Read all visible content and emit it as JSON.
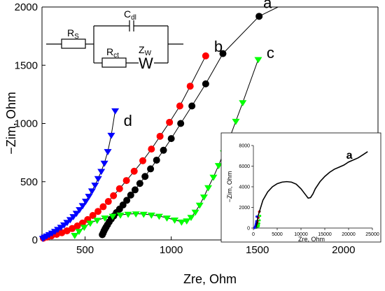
{
  "chart_data": {
    "type": "scatter",
    "xlabel": "Zre, Ohm",
    "ylabel": "−Zim, Ohm",
    "xlim": [
      250,
      2200
    ],
    "ylim": [
      0,
      2000
    ],
    "xticks": [
      "500",
      "1000",
      "1500",
      "2000"
    ],
    "yticks": [
      "0",
      "500",
      "1000",
      "1500",
      "2000"
    ],
    "series": [
      {
        "name": "a",
        "color": "#000000",
        "marker": "circle",
        "x": [
          600,
          605,
          610,
          616,
          622,
          630,
          640,
          652,
          666,
          682,
          700,
          720,
          742,
          765,
          790,
          818,
          848,
          880,
          915,
          955,
          1000,
          1055,
          1120,
          1200,
          1300,
          1510
        ],
        "y": [
          45,
          60,
          78,
          95,
          110,
          130,
          155,
          180,
          205,
          235,
          265,
          300,
          340,
          385,
          430,
          485,
          545,
          610,
          685,
          770,
          870,
          1000,
          1150,
          1340,
          1600,
          1920
        ],
        "line_to": [
          1620,
          2000
        ]
      },
      {
        "name": "b",
        "color": "#ff0000",
        "marker": "circle",
        "x": [
          258,
          280,
          305,
          335,
          365,
          395,
          425,
          455,
          485,
          515,
          545,
          575,
          605,
          635,
          665,
          700,
          740,
          785,
          835,
          885,
          935,
          990,
          1050,
          1110,
          1200
        ],
        "y": [
          15,
          25,
          35,
          48,
          62,
          78,
          98,
          120,
          145,
          175,
          210,
          245,
          285,
          330,
          380,
          440,
          510,
          590,
          680,
          780,
          890,
          1010,
          1150,
          1320,
          1580
        ]
      },
      {
        "name": "c",
        "color": "#00ff00",
        "marker": "triangle-down",
        "x": [
          440,
          465,
          495,
          530,
          570,
          615,
          660,
          705,
          750,
          795,
          840,
          885,
          930,
          975,
          1020,
          1060,
          1090,
          1115,
          1140,
          1165,
          1190,
          1215,
          1245,
          1275,
          1305,
          1340,
          1375,
          1415,
          1505
        ],
        "y": [
          40,
          75,
          110,
          145,
          170,
          190,
          205,
          215,
          222,
          225,
          222,
          215,
          205,
          190,
          172,
          155,
          165,
          195,
          240,
          300,
          370,
          450,
          540,
          640,
          750,
          880,
          1020,
          1180,
          1550
        ]
      },
      {
        "name": "d",
        "color": "#0000ff",
        "marker": "triangle-down",
        "x": [
          255,
          265,
          278,
          292,
          308,
          325,
          342,
          360,
          378,
          396,
          414,
          432,
          450,
          468,
          486,
          504,
          522,
          540,
          558,
          576,
          594,
          612,
          632,
          652,
          675
        ],
        "y": [
          15,
          25,
          35,
          47,
          60,
          75,
          92,
          110,
          130,
          152,
          176,
          202,
          230,
          262,
          296,
          334,
          376,
          422,
          472,
          528,
          590,
          660,
          760,
          900,
          1110
        ]
      }
    ],
    "inset": {
      "xlabel": "Zre, Ohm",
      "ylabel": "−Zim, Ohm",
      "xlim": [
        0,
        25000
      ],
      "ylim": [
        0,
        8000
      ],
      "xticks": [
        "0",
        "5000",
        "10000",
        "15000",
        "20000",
        "25000"
      ],
      "yticks": [
        "0",
        "2000",
        "4000",
        "6000",
        "8000"
      ],
      "series": [
        {
          "name": "a",
          "color": "#000000",
          "x": [
            600,
            1000,
            2000,
            3000,
            4000,
            5000,
            6000,
            7000,
            8000,
            9000,
            10000,
            11000,
            11500,
            12000,
            12500,
            13000,
            14000,
            15000,
            16000,
            17000,
            18000,
            19000,
            20000,
            21000,
            22000,
            23000,
            24000
          ],
          "y": [
            100,
            1200,
            2700,
            3500,
            4000,
            4300,
            4450,
            4500,
            4450,
            4250,
            3800,
            3200,
            2900,
            2950,
            3300,
            3800,
            4500,
            5000,
            5400,
            5700,
            5900,
            6100,
            6400,
            6600,
            6800,
            7100,
            7400
          ]
        }
      ]
    },
    "circuit": {
      "rs": "R",
      "rs_sub": "S",
      "cdl": "C",
      "cdl_sub": "dl",
      "rct": "R",
      "rct_sub": "ct",
      "zw": "Z",
      "zw_sub": "W",
      "w": "W"
    }
  }
}
